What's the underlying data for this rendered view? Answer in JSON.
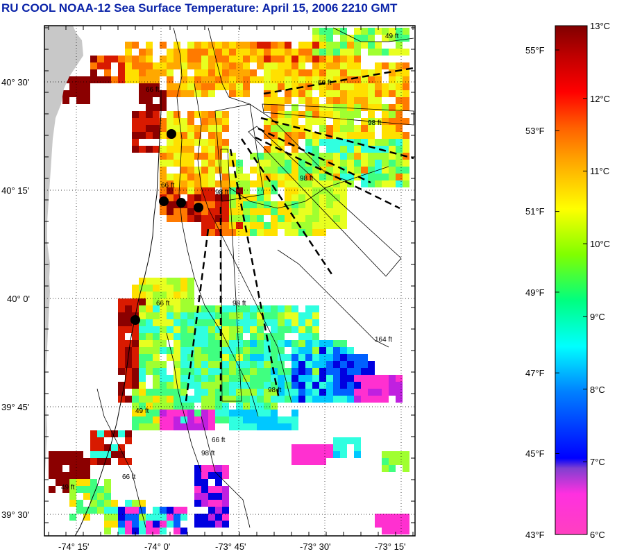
{
  "title": "RU COOL  NOAA-12  Sea Surface Temperature:  April 15, 2006 2210 GMT",
  "map": {
    "lat_labels": [
      "40° 30'",
      "40° 15'",
      "40° 0'",
      "39° 45'",
      "39° 30'"
    ],
    "lon_labels": [
      "-74° 15'",
      "-74° 0'",
      "-73° 45'",
      "-73° 30'",
      "-73° 15'"
    ],
    "contour_labels": [
      "66 ft",
      "66 ft",
      "98 ft",
      "66 ft",
      "98 ft",
      "98 ft",
      "98 ft",
      "66 ft",
      "49 ft",
      "164 ft",
      "98 ft",
      "49 ft",
      "66 ft",
      "98 ft",
      "66 ft",
      "49 ft"
    ],
    "stations": 5,
    "colors": {
      "land": "#c8c8c8",
      "cloud": "#ffffff"
    }
  },
  "colorbar": {
    "celsius_labels": [
      "13°C",
      "12°C",
      "11°C",
      "10°C",
      "9°C",
      "8°C",
      "7°C",
      "6°C"
    ],
    "fahrenheit_labels": [
      "55°F",
      "53°F",
      "51°F",
      "49°F",
      "47°F",
      "45°F",
      "43°F"
    ],
    "celsius_min": 6,
    "celsius_max": 13,
    "stops": [
      "#ff40c0",
      "#8040d0",
      "#0000ff",
      "#00a0ff",
      "#00ffff",
      "#00ff80",
      "#80ff00",
      "#ffff00",
      "#ffc000",
      "#ff8000",
      "#ff2000",
      "#c00000",
      "#800000"
    ]
  }
}
